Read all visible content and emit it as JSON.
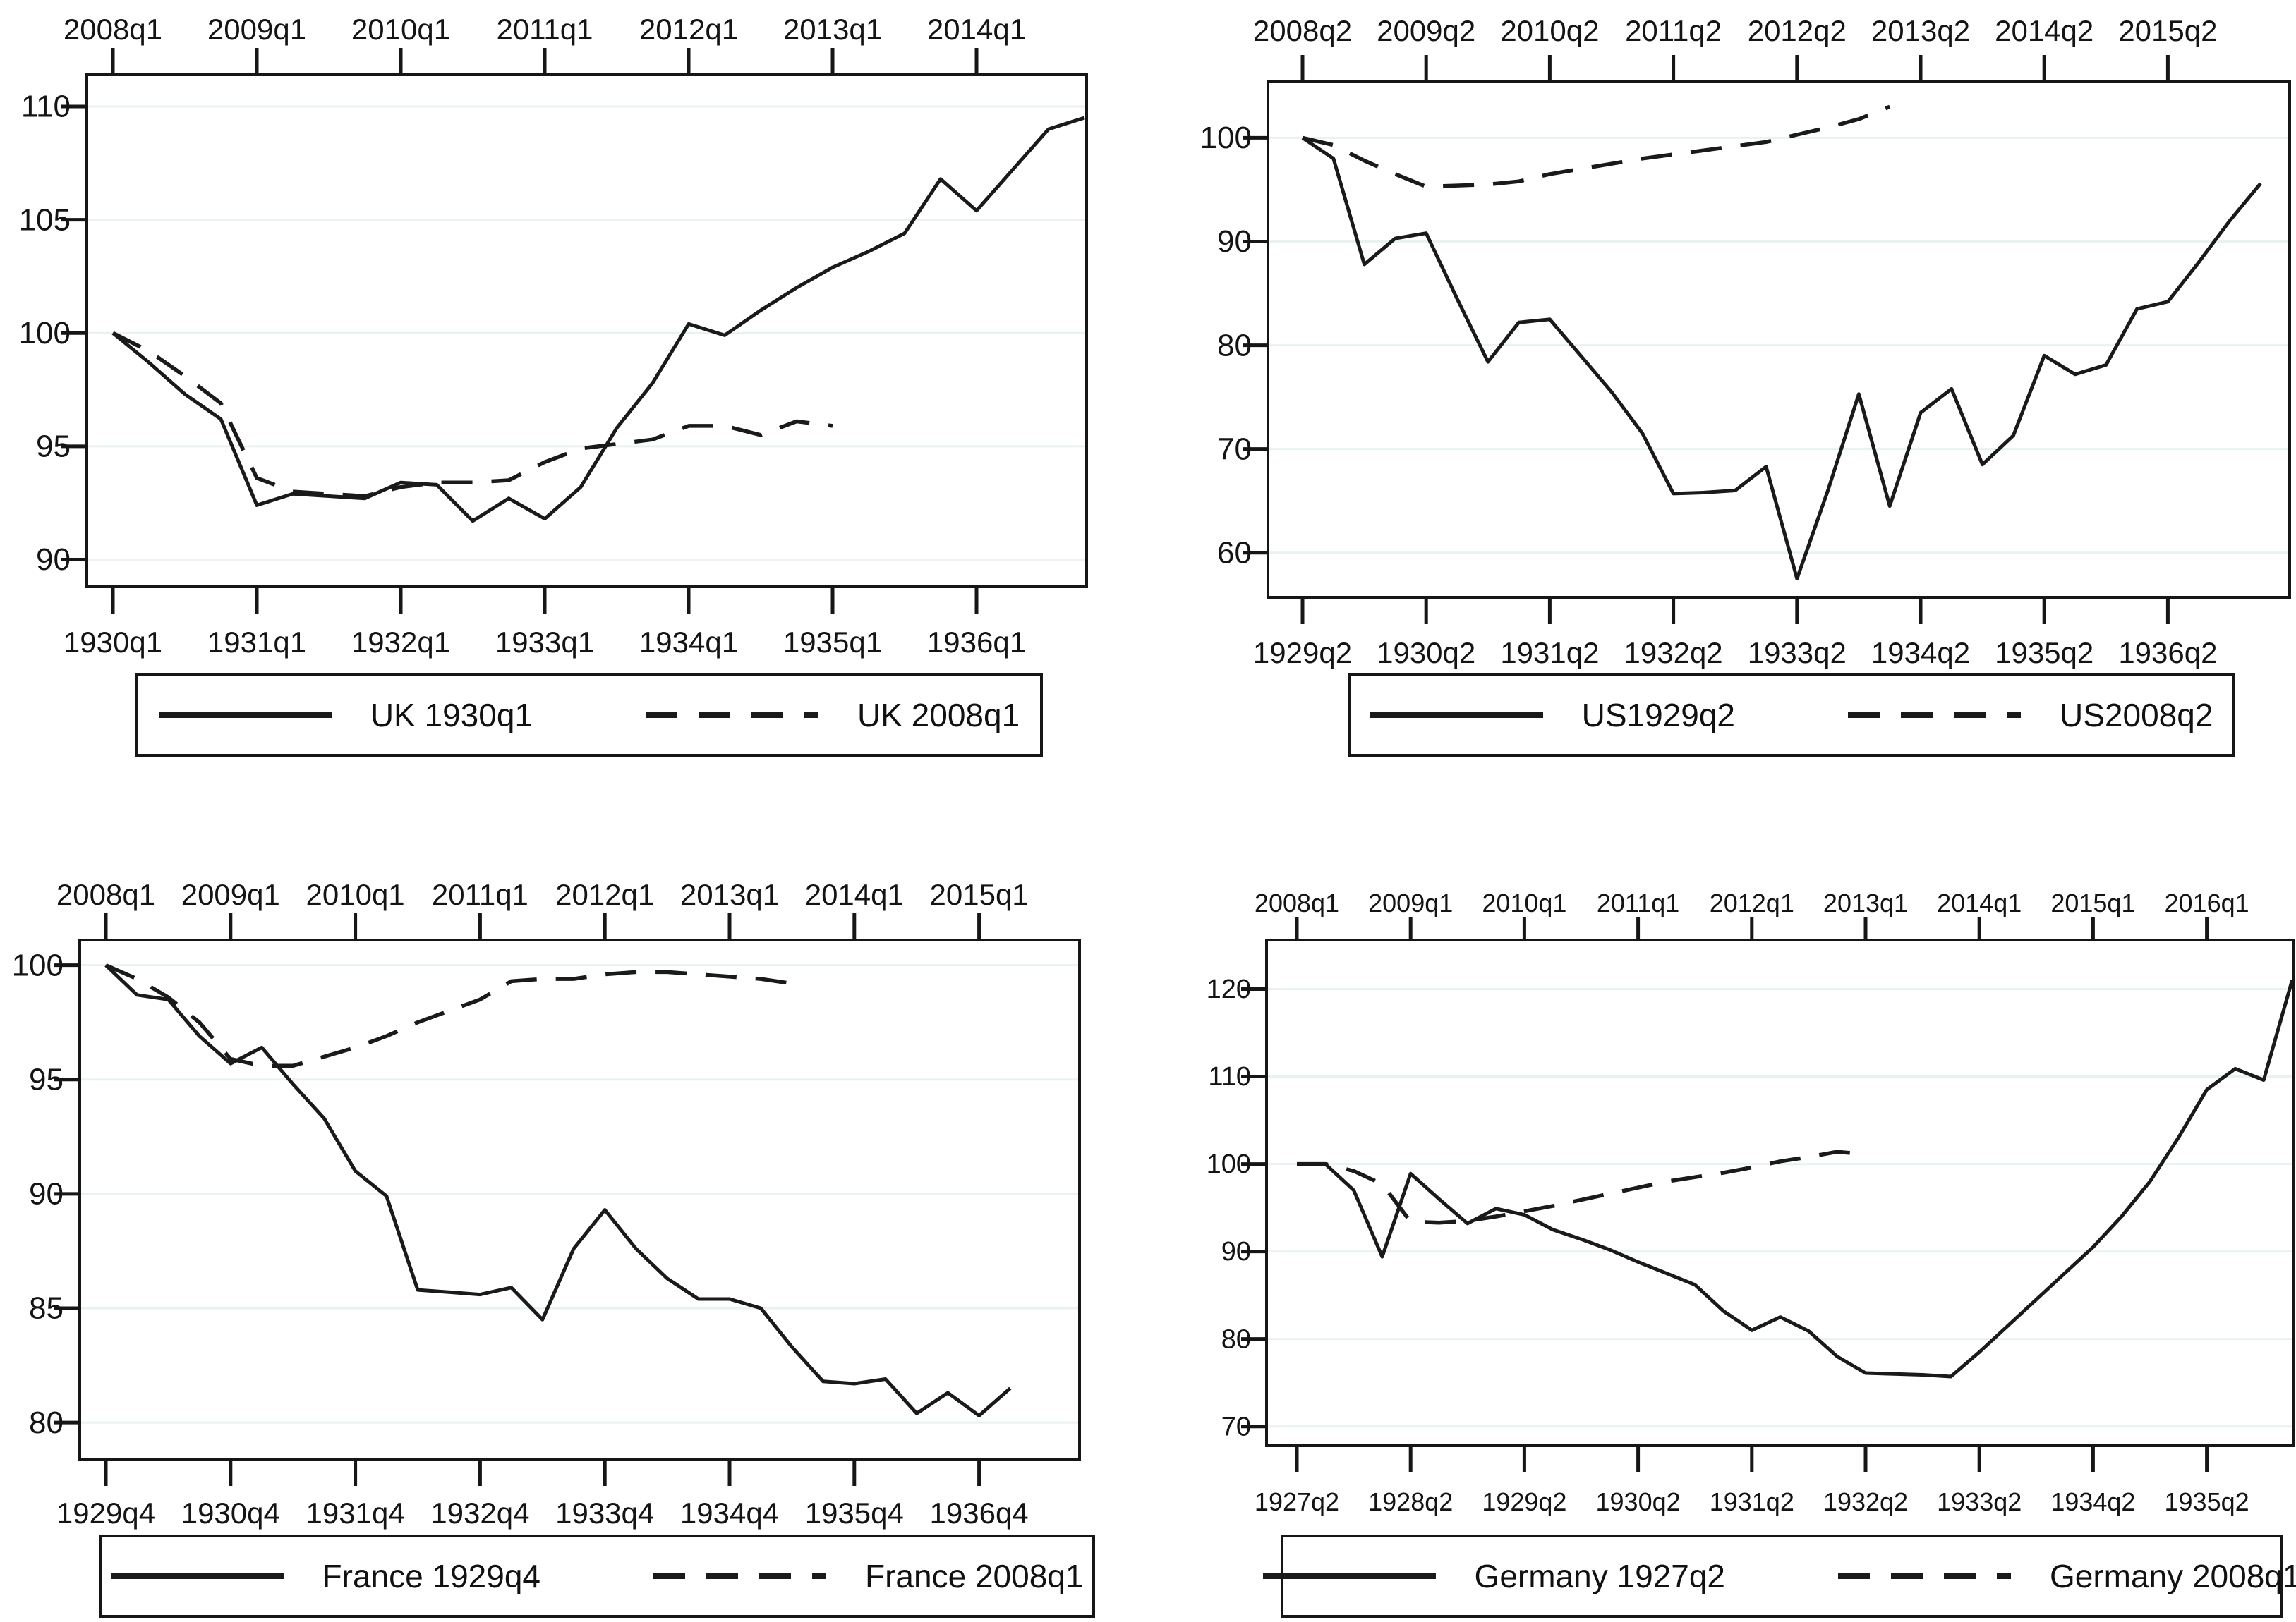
{
  "page": {
    "background": "#ffffff",
    "frame_color": "#161616",
    "grid_color": "#e9f2ee",
    "line_color": "#1a1a1a"
  },
  "chart_data": [
    {
      "type": "line",
      "country": "UK",
      "position": "top-left",
      "title": "",
      "xlabel": "",
      "ylabel": "",
      "grid": true,
      "legend_position": "below",
      "top_axis_ticks": [
        "2008q1",
        "2009q1",
        "2010q1",
        "2011q1",
        "2012q1",
        "2013q1",
        "2014q1"
      ],
      "bottom_axis_ticks": [
        "1930q1",
        "1931q1",
        "1932q1",
        "1933q1",
        "1934q1",
        "1935q1",
        "1936q1"
      ],
      "yticks": [
        90,
        95,
        100,
        105,
        110
      ],
      "ylim": [
        88.8,
        111.4
      ],
      "legend_entries": [
        "UK 1930q1",
        "UK 2008q1"
      ],
      "series": [
        {
          "name": "UK 1930q1",
          "style": "solid",
          "start": "1930q1",
          "freq": "quarterly",
          "values": [
            100,
            98.7,
            97.3,
            96.2,
            92.4,
            92.9,
            92.8,
            92.7,
            93.4,
            93.3,
            91.7,
            92.7,
            91.8,
            93.2,
            95.8,
            97.8,
            100.4,
            99.9,
            101.0,
            102.0,
            102.9,
            103.6,
            104.4,
            106.8,
            105.4,
            107.2,
            109.0,
            109.5
          ]
        },
        {
          "name": "UK 2008q1",
          "style": "dashed",
          "start": "2008q1",
          "freq": "quarterly",
          "values": [
            100,
            99.2,
            98.1,
            96.9,
            93.6,
            93.0,
            92.9,
            92.8,
            93.2,
            93.4,
            93.4,
            93.5,
            94.3,
            94.9,
            95.1,
            95.3,
            95.9,
            95.9,
            95.5,
            96.1,
            95.9
          ]
        }
      ]
    },
    {
      "type": "line",
      "country": "US",
      "position": "top-right",
      "title": "",
      "xlabel": "",
      "ylabel": "",
      "grid": true,
      "legend_position": "below",
      "top_axis_ticks": [
        "2008q2",
        "2009q2",
        "2010q2",
        "2011q2",
        "2012q2",
        "2013q2",
        "2014q2",
        "2015q2"
      ],
      "bottom_axis_ticks": [
        "1929q2",
        "1930q2",
        "1931q2",
        "1932q2",
        "1933q2",
        "1934q2",
        "1935q2",
        "1936q2"
      ],
      "yticks": [
        60,
        70,
        80,
        90,
        100
      ],
      "ylim": [
        55.7,
        105.4
      ],
      "legend_entries": [
        "US1929q2",
        "US2008q2"
      ],
      "series": [
        {
          "name": "US1929q2",
          "style": "solid",
          "start": "1929q2",
          "freq": "quarterly",
          "values": [
            100,
            98.0,
            87.8,
            90.3,
            90.8,
            84.5,
            78.4,
            82.2,
            82.5,
            79.0,
            75.5,
            71.5,
            65.7,
            65.8,
            66.0,
            68.3,
            57.5,
            66.0,
            75.3,
            64.5,
            73.5,
            75.8,
            68.5,
            71.3,
            79.0,
            77.2,
            78.1,
            83.5,
            84.2,
            88.0,
            92.0,
            95.6
          ]
        },
        {
          "name": "US2008q2",
          "style": "dashed",
          "start": "2008q2",
          "freq": "quarterly",
          "values": [
            100,
            99.3,
            97.8,
            96.5,
            95.3,
            95.4,
            95.5,
            95.8,
            96.5,
            97.0,
            97.5,
            98.0,
            98.4,
            98.8,
            99.2,
            99.6,
            100.3,
            101.0,
            101.8,
            103.0
          ]
        }
      ]
    },
    {
      "type": "line",
      "country": "France",
      "position": "bottom-left",
      "title": "",
      "xlabel": "",
      "ylabel": "",
      "grid": true,
      "legend_position": "below",
      "top_axis_ticks": [
        "2008q1",
        "2009q1",
        "2010q1",
        "2011q1",
        "2012q1",
        "2013q1",
        "2014q1",
        "2015q1"
      ],
      "bottom_axis_ticks": [
        "1929q4",
        "1930q4",
        "1931q4",
        "1932q4",
        "1933q4",
        "1934q4",
        "1935q4",
        "1936q4"
      ],
      "yticks": [
        80,
        85,
        90,
        95,
        100
      ],
      "ylim": [
        78.4,
        101.1
      ],
      "legend_entries": [
        "France 1929q4",
        "France 2008q1"
      ],
      "series": [
        {
          "name": "France 1929q4",
          "style": "solid",
          "start": "1929q4",
          "freq": "quarterly",
          "values": [
            100,
            98.7,
            98.5,
            96.9,
            95.7,
            96.4,
            94.8,
            93.3,
            91.0,
            89.9,
            85.8,
            85.7,
            85.6,
            85.9,
            84.5,
            87.6,
            89.3,
            87.6,
            86.3,
            85.4,
            85.4,
            85.0,
            83.3,
            81.8,
            81.7,
            81.9,
            80.4,
            81.3,
            80.3,
            81.5
          ]
        },
        {
          "name": "France 2008q1",
          "style": "dashed",
          "start": "2008q1",
          "freq": "quarterly",
          "values": [
            100,
            99.4,
            98.6,
            97.5,
            95.9,
            95.6,
            95.6,
            96.0,
            96.4,
            96.9,
            97.5,
            98.0,
            98.5,
            99.3,
            99.4,
            99.4,
            99.6,
            99.7,
            99.7,
            99.6,
            99.5,
            99.4,
            99.2
          ]
        }
      ]
    },
    {
      "type": "line",
      "country": "Germany",
      "position": "bottom-right",
      "title": "",
      "xlabel": "",
      "ylabel": "",
      "grid": true,
      "legend_position": "below",
      "top_axis_ticks": [
        "2008q1",
        "2009q1",
        "2010q1",
        "2011q1",
        "2012q1",
        "2013q1",
        "2014q1",
        "2015q1",
        "2016q1"
      ],
      "bottom_axis_ticks": [
        "1927q2",
        "1928q2",
        "1929q2",
        "1930q2",
        "1931q2",
        "1932q2",
        "1933q2",
        "1934q2",
        "1935q2"
      ],
      "yticks": [
        70,
        80,
        90,
        100,
        110,
        120
      ],
      "ylim": [
        67.8,
        125.6
      ],
      "legend_entries": [
        "Germany 1927q2",
        "Germany 2008q1"
      ],
      "series": [
        {
          "name": "Germany 1927q2",
          "style": "solid",
          "start": "1927q2",
          "freq": "quarterly",
          "values": [
            100,
            100,
            97.0,
            89.4,
            98.9,
            96.0,
            93.2,
            94.9,
            94.2,
            92.5,
            91.4,
            90.2,
            88.8,
            87.5,
            86.2,
            83.2,
            81.0,
            82.5,
            80.9,
            78.0,
            76.1,
            76.0,
            75.9,
            75.7,
            78.5,
            81.5,
            84.5,
            87.5,
            90.5,
            94.0,
            98.0,
            103.0,
            108.5,
            110.9,
            109.6,
            121.0
          ]
        },
        {
          "name": "Germany 2008q1",
          "style": "dashed",
          "start": "2008q1",
          "freq": "quarterly",
          "values": [
            100,
            100,
            99.2,
            97.7,
            93.4,
            93.3,
            93.5,
            94.0,
            94.6,
            95.2,
            95.9,
            96.6,
            97.3,
            98.0,
            98.5,
            99.0,
            99.6,
            100.3,
            100.8,
            101.4,
            101.1
          ]
        }
      ]
    }
  ]
}
